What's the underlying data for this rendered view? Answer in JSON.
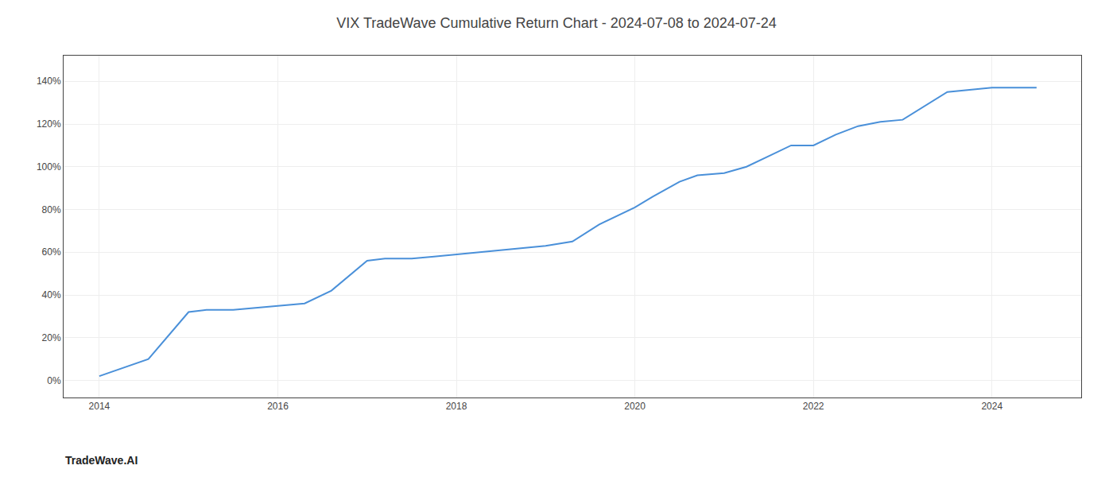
{
  "chart_data": {
    "type": "line",
    "title": "VIX TradeWave Cumulative Return Chart - 2024-07-08 to 2024-07-24",
    "annotations": [
      "TradeWave.AI"
    ],
    "x": [
      2014.0,
      2014.55,
      2015.0,
      2015.2,
      2015.5,
      2016.0,
      2016.3,
      2016.6,
      2017.0,
      2017.2,
      2017.5,
      2017.75,
      2018.0,
      2018.2,
      2018.5,
      2019.0,
      2019.3,
      2019.6,
      2020.0,
      2020.2,
      2020.5,
      2020.7,
      2021.0,
      2021.25,
      2021.5,
      2021.75,
      2022.0,
      2022.25,
      2022.5,
      2022.75,
      2023.0,
      2023.5,
      2024.0,
      2024.5
    ],
    "values": [
      2,
      10,
      32,
      33,
      33,
      35,
      36,
      42,
      56,
      57,
      57,
      58,
      59,
      60,
      61,
      63,
      65,
      73,
      81,
      86,
      93,
      96,
      97,
      100,
      105,
      110,
      110,
      115,
      119,
      121,
      122,
      135,
      137,
      137
    ],
    "color": "#4a90d9",
    "xlim": [
      2013.6,
      2025.0
    ],
    "ylim": [
      -8,
      152
    ],
    "xticks": [
      2014,
      2016,
      2018,
      2020,
      2022,
      2024
    ],
    "yticks": [
      {
        "value": 0,
        "label": "0%"
      },
      {
        "value": 20,
        "label": "20%"
      },
      {
        "value": 40,
        "label": "40%"
      },
      {
        "value": 60,
        "label": "60%"
      },
      {
        "value": 80,
        "label": "80%"
      },
      {
        "value": 100,
        "label": "100%"
      },
      {
        "value": 120,
        "label": "120%"
      },
      {
        "value": 140,
        "label": "140%"
      }
    ],
    "grid": true
  }
}
